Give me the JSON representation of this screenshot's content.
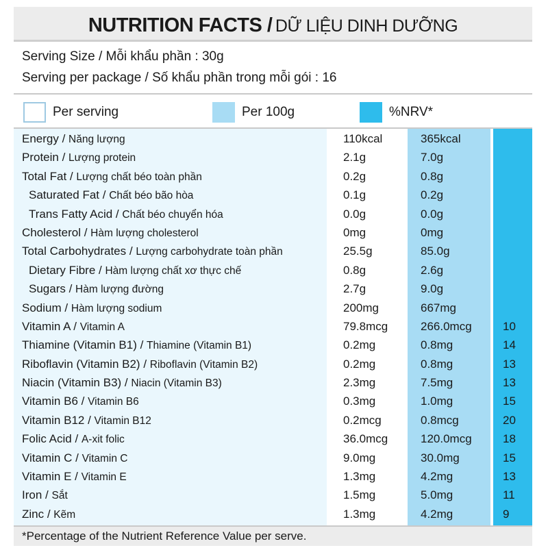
{
  "title": {
    "en": "NUTRITION FACTS /",
    "vi": "DỮ LIỆU DINH DƯỠNG"
  },
  "serving": {
    "size": "Serving Size / Mỗi khẩu phần : 30g",
    "per_package": "Serving per package / Số khẩu phần trong mỗi gói : 16"
  },
  "legend": {
    "per_serving": "Per serving",
    "per_100g": "Per 100g",
    "nrv": "%NRV*"
  },
  "colors": {
    "per_serving": "#ffffff",
    "per_100g": "#a8dcf4",
    "nrv": "#2ebcec",
    "header_bg": "#ececec"
  },
  "nutrients": [
    {
      "en": "Energy /",
      "vi": "Năng lượng",
      "per_serving": "110kcal",
      "per_100g": "365kcal",
      "nrv": ""
    },
    {
      "en": "Protein /",
      "vi": "Lượng protein",
      "per_serving": "2.1g",
      "per_100g": "7.0g",
      "nrv": ""
    },
    {
      "en": "Total Fat /",
      "vi": "Lượng chất béo toàn phần",
      "per_serving": "0.2g",
      "per_100g": "0.8g",
      "nrv": ""
    },
    {
      "en": "Saturated Fat /",
      "vi": "Chất béo bão hòa",
      "per_serving": "0.1g",
      "per_100g": "0.2g",
      "nrv": "",
      "indent": true
    },
    {
      "en": "Trans Fatty Acid /",
      "vi": "Chất béo chuyển hóa",
      "per_serving": "0.0g",
      "per_100g": "0.0g",
      "nrv": "",
      "indent": true
    },
    {
      "en": "Cholesterol /",
      "vi": "Hàm lượng cholesterol",
      "per_serving": "0mg",
      "per_100g": "0mg",
      "nrv": ""
    },
    {
      "en": "Total Carbohydrates /",
      "vi": "Lượng carbohydrate toàn phần",
      "per_serving": "25.5g",
      "per_100g": "85.0g",
      "nrv": ""
    },
    {
      "en": "Dietary Fibre /",
      "vi": "Hàm lượng chất xơ thực chế",
      "per_serving": "0.8g",
      "per_100g": "2.6g",
      "nrv": "",
      "indent": true
    },
    {
      "en": "Sugars /",
      "vi": "Hàm lượng đường",
      "per_serving": "2.7g",
      "per_100g": "9.0g",
      "nrv": "",
      "indent": true
    },
    {
      "en": "Sodium /",
      "vi": "Hàm lượng sodium",
      "per_serving": "200mg",
      "per_100g": "667mg",
      "nrv": ""
    },
    {
      "en": "Vitamin A /",
      "vi": "Vitamin A",
      "per_serving": "79.8mcg",
      "per_100g": "266.0mcg",
      "nrv": "10"
    },
    {
      "en": "Thiamine (Vitamin B1) /",
      "vi": "Thiamine (Vitamin B1)",
      "per_serving": "0.2mg",
      "per_100g": "0.8mg",
      "nrv": "14"
    },
    {
      "en": "Riboflavin (Vitamin B2) /",
      "vi": "Riboflavin (Vitamin B2)",
      "per_serving": "0.2mg",
      "per_100g": "0.8mg",
      "nrv": "13"
    },
    {
      "en": "Niacin (Vitamin B3) /",
      "vi": "Niacin (Vitamin B3)",
      "per_serving": "2.3mg",
      "per_100g": "7.5mg",
      "nrv": "13"
    },
    {
      "en": "Vitamin B6 /",
      "vi": "Vitamin B6",
      "per_serving": "0.3mg",
      "per_100g": "1.0mg",
      "nrv": "15"
    },
    {
      "en": "Vitamin B12 /",
      "vi": "Vitamin B12",
      "per_serving": "0.2mcg",
      "per_100g": "0.8mcg",
      "nrv": "20"
    },
    {
      "en": "Folic Acid /",
      "vi": "A-xit folic",
      "per_serving": "36.0mcg",
      "per_100g": "120.0mcg",
      "nrv": "18"
    },
    {
      "en": "Vitamin C /",
      "vi": "Vitamin C",
      "per_serving": "9.0mg",
      "per_100g": "30.0mg",
      "nrv": "15"
    },
    {
      "en": "Vitamin E /",
      "vi": "Vitamin E",
      "per_serving": "1.3mg",
      "per_100g": "4.2mg",
      "nrv": "13"
    },
    {
      "en": "Iron /",
      "vi": "Sắt",
      "per_serving": "1.5mg",
      "per_100g": "5.0mg",
      "nrv": "11"
    },
    {
      "en": "Zinc /",
      "vi": "Kẽm",
      "per_serving": "1.3mg",
      "per_100g": "4.2mg",
      "nrv": "9"
    }
  ],
  "footer": "*Percentage of the Nutrient Reference Value per serve."
}
